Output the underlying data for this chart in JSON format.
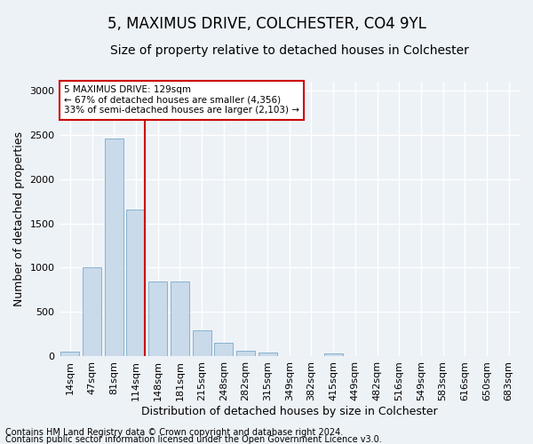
{
  "title": "5, MAXIMUS DRIVE, COLCHESTER, CO4 9YL",
  "subtitle": "Size of property relative to detached houses in Colchester",
  "xlabel": "Distribution of detached houses by size in Colchester",
  "ylabel": "Number of detached properties",
  "categories": [
    "14sqm",
    "47sqm",
    "81sqm",
    "114sqm",
    "148sqm",
    "181sqm",
    "215sqm",
    "248sqm",
    "282sqm",
    "315sqm",
    "349sqm",
    "382sqm",
    "415sqm",
    "449sqm",
    "482sqm",
    "516sqm",
    "549sqm",
    "583sqm",
    "616sqm",
    "650sqm",
    "683sqm"
  ],
  "values": [
    55,
    1000,
    2460,
    1660,
    840,
    840,
    295,
    150,
    60,
    40,
    0,
    0,
    30,
    0,
    0,
    0,
    0,
    0,
    0,
    0,
    0
  ],
  "bar_color": "#c9daea",
  "bar_edge_color": "#7aaac8",
  "vline_color": "#cc0000",
  "vline_position": 3.42,
  "annotation_text": "5 MAXIMUS DRIVE: 129sqm\n← 67% of detached houses are smaller (4,356)\n33% of semi-detached houses are larger (2,103) →",
  "annotation_box_color": "#ffffff",
  "annotation_box_edge": "#cc0000",
  "ylim": [
    0,
    3100
  ],
  "yticks": [
    0,
    500,
    1000,
    1500,
    2000,
    2500,
    3000
  ],
  "footer_line1": "Contains HM Land Registry data © Crown copyright and database right 2024.",
  "footer_line2": "Contains public sector information licensed under the Open Government Licence v3.0.",
  "background_color": "#edf2f7",
  "grid_color": "#ffffff",
  "title_fontsize": 12,
  "subtitle_fontsize": 10,
  "label_fontsize": 9,
  "tick_fontsize": 8,
  "footer_fontsize": 7
}
